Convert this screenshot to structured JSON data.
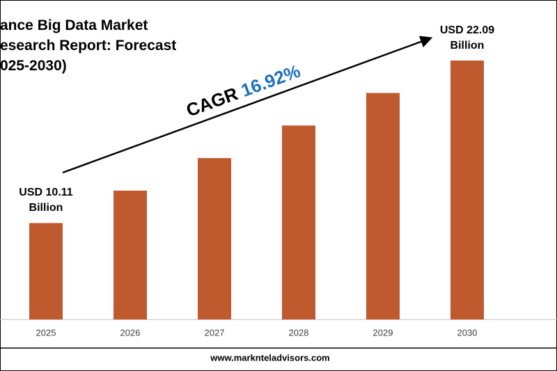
{
  "chart_data": {
    "type": "bar",
    "title_lines": [
      "ance Big Data Market",
      "esearch Report: Forecast",
      "025-2030)"
    ],
    "categories": [
      "2025",
      "2026",
      "2027",
      "2028",
      "2029",
      "2030"
    ],
    "values": [
      10.11,
      12.5,
      14.9,
      17.3,
      19.7,
      22.09
    ],
    "value_labels": [
      "USD 10.11 Billion",
      null,
      null,
      null,
      null,
      "USD 22.09 Billion"
    ],
    "color": "#bf5a2e",
    "ylim": [
      3,
      24.5
    ],
    "cagr_label": "CAGR",
    "cagr_value": "16.92%",
    "cagr_color": "#1f6fbf",
    "source": "www.marknteladvisors.com"
  }
}
